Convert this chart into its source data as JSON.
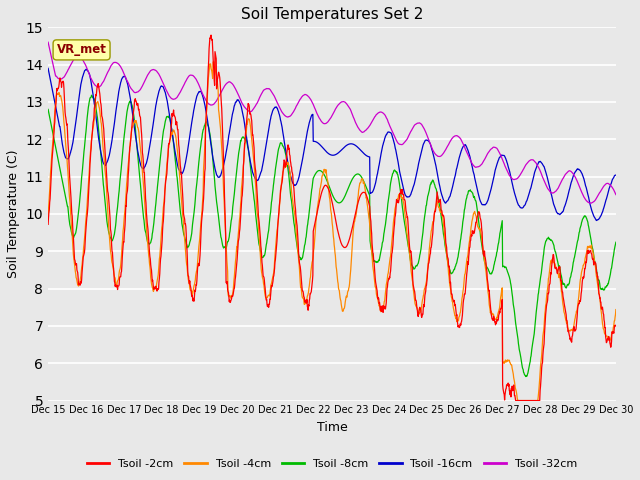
{
  "title": "Soil Temperatures Set 2",
  "xlabel": "Time",
  "ylabel": "Soil Temperature (C)",
  "ylim": [
    5.0,
    15.0
  ],
  "yticks": [
    5.0,
    6.0,
    7.0,
    8.0,
    9.0,
    10.0,
    11.0,
    12.0,
    13.0,
    14.0,
    15.0
  ],
  "background_color": "#e8e8e8",
  "plot_bg_color": "#e8e8e8",
  "series_colors": [
    "#ff0000",
    "#ff8800",
    "#00bb00",
    "#0000cc",
    "#cc00cc"
  ],
  "series_labels": [
    "Tsoil -2cm",
    "Tsoil -4cm",
    "Tsoil -8cm",
    "Tsoil -16cm",
    "Tsoil -32cm"
  ],
  "annotation_text": "VR_met",
  "annotation_color": "#8b0000",
  "annotation_bg": "#ffffaa",
  "n_points": 1440,
  "start_day": 15,
  "end_day": 30
}
